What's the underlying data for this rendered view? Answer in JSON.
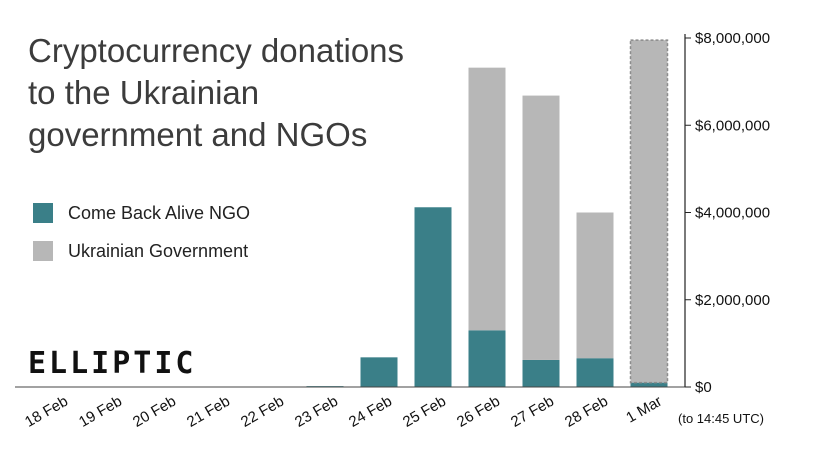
{
  "colors": {
    "teal": "#3a7f88",
    "grey": "#b7b7b7",
    "axis": "#444444"
  },
  "logo": "ELLIPTIC",
  "chart_data": {
    "type": "bar",
    "stacked": true,
    "title_lines": [
      "Cryptocurrency donations",
      "to the Ukrainian",
      "government and NGOs"
    ],
    "categories": [
      "18 Feb",
      "19 Feb",
      "20 Feb",
      "21 Feb",
      "22 Feb",
      "23 Feb",
      "24 Feb",
      "25 Feb",
      "26 Feb",
      "27 Feb",
      "28 Feb",
      "1 Mar"
    ],
    "category_note": "(to 14:45 UTC)",
    "series": [
      {
        "name": "Come Back Alive NGO",
        "color": "#3a7f88",
        "values": [
          0,
          0,
          0,
          0,
          0,
          20000,
          680000,
          4120000,
          1300000,
          620000,
          660000,
          100000
        ]
      },
      {
        "name": "Ukrainian Government",
        "color": "#b7b7b7",
        "values": [
          0,
          0,
          0,
          0,
          0,
          0,
          0,
          0,
          6020000,
          6060000,
          3340000,
          7850000
        ]
      }
    ],
    "partial_category": "1 Mar",
    "ylim": [
      0,
      8000000
    ],
    "yticks": [
      0,
      2000000,
      4000000,
      6000000,
      8000000
    ],
    "ytick_labels": [
      "$0",
      "$2,000,000",
      "$4,000,000",
      "$6,000,000",
      "$8,000,000"
    ],
    "y_axis_position": "right",
    "legend_position": "left",
    "grid": false
  }
}
